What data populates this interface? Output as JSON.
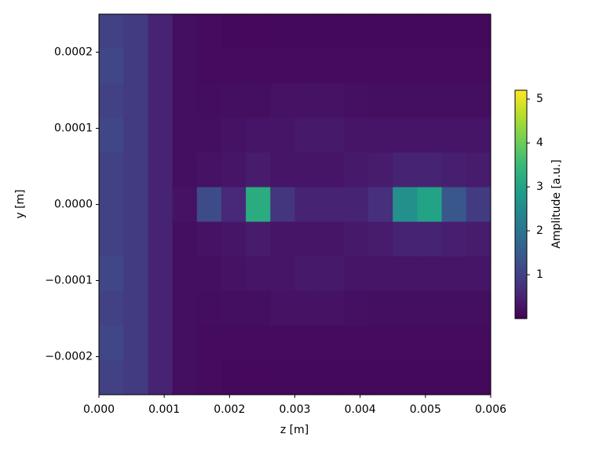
{
  "chart_data": {
    "type": "heatmap",
    "xlabel": "z [m]",
    "ylabel": "y [m]",
    "colorbar_label": "Amplitude [a.u.]",
    "colormap": "viridis",
    "clim": [
      0,
      5.2
    ],
    "cticks": [
      1,
      2,
      3,
      4,
      5
    ],
    "xlim": [
      0,
      0.006
    ],
    "ylim": [
      -0.00025,
      0.00025
    ],
    "xticks": [
      {
        "value": 0,
        "label": "0.000"
      },
      {
        "value": 0.001,
        "label": "0.001"
      },
      {
        "value": 0.002,
        "label": "0.002"
      },
      {
        "value": 0.003,
        "label": "0.003"
      },
      {
        "value": 0.004,
        "label": "0.004"
      },
      {
        "value": 0.005,
        "label": "0.005"
      },
      {
        "value": 0.006,
        "label": "0.006"
      }
    ],
    "yticks": [
      {
        "value": -0.0002,
        "label": "−0.0002"
      },
      {
        "value": -0.0001,
        "label": "−0.0001"
      },
      {
        "value": 0,
        "label": "0.0000"
      },
      {
        "value": 0.0001,
        "label": "0.0001"
      },
      {
        "value": 0.0002,
        "label": "0.0002"
      }
    ],
    "values": [
      [
        1.0,
        0.9,
        0.5,
        0.2,
        0.15,
        0.12,
        0.12,
        0.12,
        0.12,
        0.12,
        0.12,
        0.12,
        0.12,
        0.12,
        0.12,
        0.12
      ],
      [
        1.1,
        0.9,
        0.5,
        0.2,
        0.15,
        0.15,
        0.15,
        0.15,
        0.15,
        0.15,
        0.15,
        0.15,
        0.15,
        0.15,
        0.15,
        0.15
      ],
      [
        1.0,
        0.9,
        0.5,
        0.2,
        0.18,
        0.2,
        0.2,
        0.25,
        0.25,
        0.25,
        0.22,
        0.2,
        0.2,
        0.2,
        0.2,
        0.2
      ],
      [
        1.1,
        0.9,
        0.5,
        0.2,
        0.2,
        0.25,
        0.3,
        0.3,
        0.35,
        0.35,
        0.3,
        0.3,
        0.3,
        0.3,
        0.3,
        0.3
      ],
      [
        1.0,
        0.9,
        0.5,
        0.2,
        0.25,
        0.3,
        0.4,
        0.3,
        0.3,
        0.3,
        0.35,
        0.4,
        0.5,
        0.5,
        0.45,
        0.4
      ],
      [
        1.0,
        0.9,
        0.5,
        0.25,
        1.2,
        0.6,
        3.2,
        0.8,
        0.5,
        0.5,
        0.5,
        0.7,
        2.6,
        3.0,
        1.4,
        0.9
      ],
      [
        1.0,
        0.9,
        0.5,
        0.2,
        0.25,
        0.3,
        0.4,
        0.3,
        0.3,
        0.3,
        0.35,
        0.4,
        0.5,
        0.5,
        0.45,
        0.4
      ],
      [
        1.1,
        0.9,
        0.5,
        0.2,
        0.2,
        0.25,
        0.3,
        0.3,
        0.35,
        0.35,
        0.3,
        0.3,
        0.3,
        0.3,
        0.3,
        0.3
      ],
      [
        1.0,
        0.9,
        0.5,
        0.2,
        0.18,
        0.2,
        0.2,
        0.25,
        0.25,
        0.25,
        0.22,
        0.2,
        0.2,
        0.2,
        0.2,
        0.2
      ],
      [
        1.1,
        0.9,
        0.5,
        0.2,
        0.15,
        0.15,
        0.15,
        0.15,
        0.15,
        0.15,
        0.15,
        0.15,
        0.15,
        0.15,
        0.15,
        0.15
      ],
      [
        1.0,
        0.9,
        0.5,
        0.2,
        0.15,
        0.12,
        0.12,
        0.12,
        0.12,
        0.12,
        0.12,
        0.12,
        0.12,
        0.12,
        0.12,
        0.12
      ]
    ]
  }
}
